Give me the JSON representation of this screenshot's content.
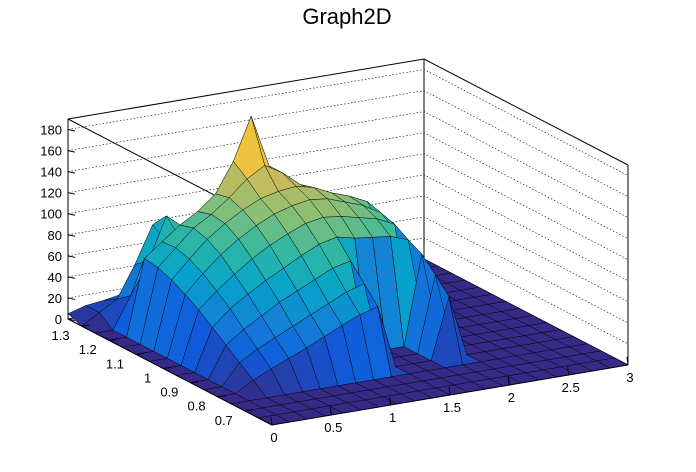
{
  "chart_data": {
    "type": "surface",
    "title": "Graph2D",
    "x_range": [
      0,
      3
    ],
    "y_range": [
      0.6,
      1.35
    ],
    "z_range": [
      0,
      190
    ],
    "x_ticks": [
      "0",
      "0.5",
      "1",
      "1.5",
      "2",
      "2.5",
      "3"
    ],
    "y_ticks": [
      "0.7",
      "0.8",
      "0.9",
      "1",
      "1.1",
      "1.2",
      "1.3"
    ],
    "z_ticks": [
      "0",
      "20",
      "40",
      "60",
      "80",
      "100",
      "120",
      "140",
      "160",
      "180"
    ],
    "grid": true,
    "colormap": [
      "#352a87",
      "#0f5cdd",
      "#1481d6",
      "#06a4ca",
      "#2eb7a4",
      "#87bf77",
      "#d1bb59",
      "#fec832",
      "#f9fb0e"
    ],
    "x_grid": [
      0.0,
      0.15,
      0.3,
      0.45,
      0.6,
      0.75,
      0.9,
      1.05,
      1.2,
      1.35,
      1.5,
      1.65,
      1.8,
      1.95,
      2.1,
      2.25,
      2.4,
      2.55,
      2.7,
      2.85,
      3.0
    ],
    "y_grid": [
      0.6,
      0.65,
      0.7,
      0.75,
      0.8,
      0.85,
      0.9,
      0.95,
      1.0,
      1.05,
      1.1,
      1.15,
      1.2,
      1.25,
      1.3,
      1.35
    ],
    "z_values": [
      [
        0,
        0,
        0,
        0,
        0,
        0,
        0,
        0,
        0,
        0,
        0,
        0,
        0,
        0,
        0,
        0,
        0,
        0,
        0,
        0,
        0
      ],
      [
        0,
        0,
        0,
        0,
        0,
        0,
        0,
        0,
        0,
        0,
        0,
        0,
        0,
        0,
        0,
        0,
        0,
        0,
        0,
        0,
        0
      ],
      [
        0,
        0,
        0,
        0,
        0,
        0,
        0,
        0,
        0,
        0,
        0,
        0,
        0,
        0,
        0,
        0,
        0,
        0,
        0,
        0,
        0
      ],
      [
        0,
        0,
        0,
        0,
        0,
        0,
        0,
        0,
        0,
        0,
        0,
        0,
        0,
        0,
        0,
        0,
        0,
        0,
        0,
        0,
        0
      ],
      [
        0,
        0,
        10,
        18,
        25,
        32,
        40,
        48,
        55,
        60,
        0,
        0,
        0,
        58,
        0,
        0,
        0,
        0,
        0,
        0,
        0
      ],
      [
        0,
        0,
        20,
        30,
        38,
        46,
        54,
        62,
        70,
        75,
        0,
        0,
        0,
        72,
        0,
        0,
        0,
        0,
        0,
        0,
        0
      ],
      [
        0,
        0,
        30,
        42,
        52,
        62,
        70,
        78,
        86,
        90,
        0,
        0,
        0,
        85,
        0,
        0,
        0,
        0,
        0,
        0,
        0
      ],
      [
        0,
        0,
        40,
        55,
        66,
        76,
        85,
        94,
        102,
        106,
        102,
        100,
        98,
        92,
        0,
        0,
        0,
        0,
        0,
        0,
        0
      ],
      [
        0,
        0,
        50,
        65,
        78,
        90,
        100,
        108,
        115,
        118,
        116,
        112,
        108,
        100,
        0,
        0,
        0,
        0,
        0,
        0,
        0
      ],
      [
        0,
        0,
        58,
        75,
        90,
        102,
        112,
        120,
        125,
        128,
        126,
        120,
        114,
        104,
        80,
        0,
        0,
        0,
        0,
        0,
        0
      ],
      [
        0,
        0,
        65,
        82,
        98,
        110,
        120,
        128,
        132,
        134,
        130,
        122,
        116,
        108,
        70,
        0,
        0,
        0,
        0,
        0,
        0
      ],
      [
        0,
        0,
        70,
        86,
        102,
        112,
        125,
        140,
        150,
        140,
        126,
        116,
        110,
        100,
        60,
        0,
        0,
        0,
        0,
        0,
        0
      ],
      [
        0,
        0,
        72,
        85,
        98,
        108,
        122,
        150,
        190,
        140,
        120,
        110,
        102,
        90,
        50,
        0,
        0,
        0,
        0,
        0,
        0
      ],
      [
        0,
        0,
        30,
        60,
        100,
        70,
        55,
        80,
        100,
        90,
        80,
        70,
        60,
        40,
        0,
        0,
        0,
        0,
        0,
        0,
        0
      ],
      [
        0,
        10,
        20,
        50,
        85,
        60,
        40,
        40,
        30,
        20,
        10,
        0,
        0,
        0,
        0,
        0,
        0,
        0,
        0,
        0,
        0
      ],
      [
        5,
        10,
        12,
        15,
        18,
        20,
        18,
        15,
        12,
        10,
        5,
        0,
        0,
        0,
        0,
        0,
        0,
        0,
        0,
        0,
        0
      ]
    ]
  }
}
